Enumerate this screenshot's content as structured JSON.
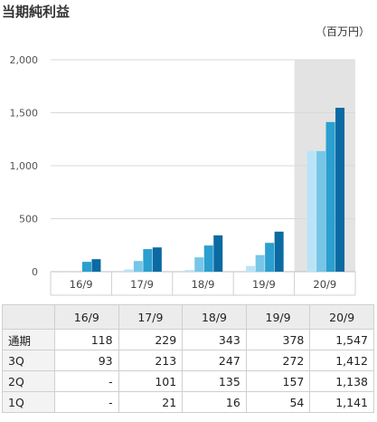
{
  "title": "当期純利益",
  "unit": "（百万円）",
  "chart_data": {
    "type": "bar",
    "categories": [
      "16/9",
      "17/9",
      "18/9",
      "19/9",
      "20/9"
    ],
    "series": [
      {
        "name": "1Q",
        "values": [
          null,
          21,
          16,
          54,
          1141
        ]
      },
      {
        "name": "2Q",
        "values": [
          null,
          101,
          135,
          157,
          1138
        ]
      },
      {
        "name": "3Q",
        "values": [
          93,
          213,
          247,
          272,
          1412
        ]
      },
      {
        "name": "通期",
        "values": [
          118,
          229,
          343,
          378,
          1547
        ]
      }
    ],
    "yticks": [
      "0",
      "500",
      "1,000",
      "1,500",
      "2,000"
    ],
    "ylim": [
      0,
      2000
    ],
    "grid": true,
    "highlight_category": "20/9",
    "colors": [
      "#b9e4f7",
      "#76c6e8",
      "#2a9fd0",
      "#0b6aa2"
    ]
  },
  "table": {
    "headers": [
      "16/9",
      "17/9",
      "18/9",
      "19/9",
      "20/9"
    ],
    "rows": [
      {
        "label": "通期",
        "values": [
          "118",
          "229",
          "343",
          "378",
          "1,547"
        ]
      },
      {
        "label": "3Q",
        "values": [
          "93",
          "213",
          "247",
          "272",
          "1,412"
        ]
      },
      {
        "label": "2Q",
        "values": [
          "-",
          "101",
          "135",
          "157",
          "1,138"
        ]
      },
      {
        "label": "1Q",
        "values": [
          "-",
          "21",
          "16",
          "54",
          "1,141"
        ]
      }
    ]
  }
}
